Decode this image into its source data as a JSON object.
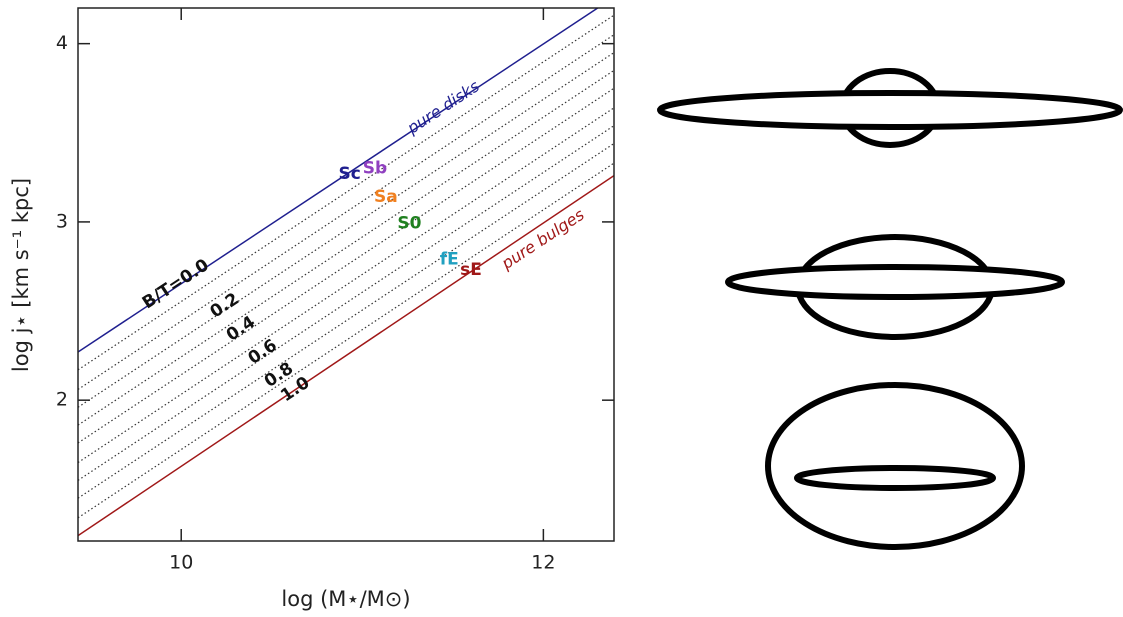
{
  "chart_data": {
    "type": "line",
    "xlabel": "log (M⋆/M⊙)",
    "ylabel": "log j⋆ [km s⁻¹ kpc]",
    "xlim": [
      9.43,
      12.39
    ],
    "ylim": [
      1.21,
      4.2
    ],
    "xticks": [
      10,
      12
    ],
    "yticks": [
      2,
      3,
      4
    ],
    "series": [
      {
        "name": "pure disks",
        "color": "#1f1f8f",
        "style": "solid",
        "x": [
          9.43,
          12.3
        ],
        "values": [
          2.27,
          4.2
        ]
      },
      {
        "name": "pure bulges",
        "color": "#a01818",
        "style": "solid",
        "x": [
          9.43,
          12.39
        ],
        "values": [
          1.24,
          3.26
        ]
      },
      {
        "color": "#333333",
        "style": "dotted",
        "x": [
          9.43,
          12.39
        ],
        "values": [
          2.17,
          4.16
        ]
      },
      {
        "color": "#333333",
        "style": "dotted",
        "x": [
          9.43,
          12.39
        ],
        "values": [
          2.06,
          4.05
        ]
      },
      {
        "color": "#333333",
        "style": "dotted",
        "x": [
          9.43,
          12.39
        ],
        "values": [
          1.96,
          3.95
        ]
      },
      {
        "color": "#333333",
        "style": "dotted",
        "x": [
          9.43,
          12.39
        ],
        "values": [
          1.86,
          3.85
        ]
      },
      {
        "color": "#333333",
        "style": "dotted",
        "x": [
          9.43,
          12.39
        ],
        "values": [
          1.76,
          3.75
        ]
      },
      {
        "color": "#333333",
        "style": "dotted",
        "x": [
          9.43,
          12.39
        ],
        "values": [
          1.65,
          3.64
        ]
      },
      {
        "color": "#333333",
        "style": "dotted",
        "x": [
          9.43,
          12.39
        ],
        "values": [
          1.55,
          3.54
        ]
      },
      {
        "color": "#333333",
        "style": "dotted",
        "x": [
          9.43,
          12.39
        ],
        "values": [
          1.45,
          3.44
        ]
      },
      {
        "color": "#333333",
        "style": "dotted",
        "x": [
          9.43,
          12.39
        ],
        "values": [
          1.34,
          3.33
        ]
      }
    ],
    "annotations": [
      {
        "text": "pure disks",
        "x": 11.45,
        "y": 3.64,
        "color": "#1f1f8f",
        "rotate": true
      },
      {
        "text": "pure bulges",
        "x": 12.0,
        "y": 2.9,
        "color": "#a01818",
        "rotate": true
      },
      {
        "text": "B/T=0.0",
        "x": 9.97,
        "y": 2.65,
        "color": "#111111",
        "rotate": true
      },
      {
        "text": "0.2",
        "x": 10.24,
        "y": 2.53,
        "color": "#111111",
        "rotate": true
      },
      {
        "text": "0.4",
        "x": 10.33,
        "y": 2.4,
        "color": "#111111",
        "rotate": true
      },
      {
        "text": "0.6",
        "x": 10.45,
        "y": 2.27,
        "color": "#111111",
        "rotate": true
      },
      {
        "text": "0.8",
        "x": 10.54,
        "y": 2.14,
        "color": "#111111",
        "rotate": true
      },
      {
        "text": "1.0",
        "x": 10.63,
        "y": 2.06,
        "color": "#111111",
        "rotate": true
      },
      {
        "text": "Sc",
        "x": 10.93,
        "y": 3.27,
        "color": "#1f1f8f"
      },
      {
        "text": "Sb",
        "x": 11.07,
        "y": 3.3,
        "color": "#9040c0"
      },
      {
        "text": "Sa",
        "x": 11.13,
        "y": 3.14,
        "color": "#f08020"
      },
      {
        "text": "S0",
        "x": 11.26,
        "y": 2.99,
        "color": "#208020"
      },
      {
        "text": "fE",
        "x": 11.48,
        "y": 2.79,
        "color": "#20a0c0"
      },
      {
        "text": "sE",
        "x": 11.6,
        "y": 2.73,
        "color": "#a01818"
      }
    ]
  }
}
